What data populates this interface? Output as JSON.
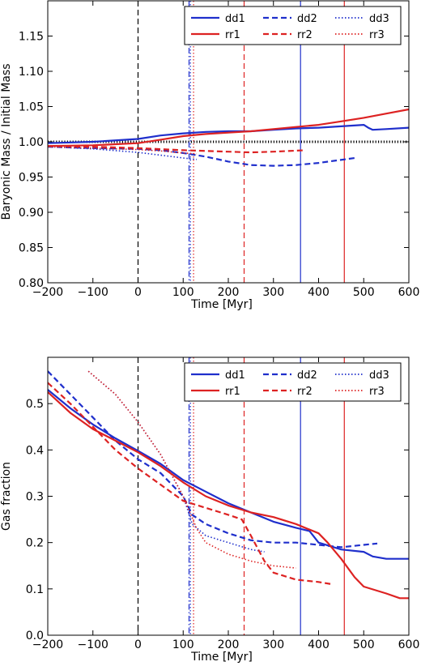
{
  "chart_data": [
    {
      "type": "line",
      "xlabel": "Time [Myr]",
      "ylabel": "Baryonic Mass / Initial Mass",
      "xlim": [
        -200,
        600
      ],
      "ylim": [
        0.8,
        1.2
      ],
      "xticks": [
        -200,
        -100,
        0,
        100,
        200,
        300,
        400,
        500,
        600
      ],
      "xtick_labels": [
        "−200",
        "−100",
        "0",
        "100",
        "200",
        "300",
        "400",
        "500",
        "600"
      ],
      "yticks": [
        0.8,
        0.85,
        0.9,
        0.95,
        1.0,
        1.05,
        1.1,
        1.15
      ],
      "ytick_labels": [
        "0.80",
        "0.85",
        "0.90",
        "0.95",
        "1.00",
        "1.05",
        "1.10",
        "1.15"
      ],
      "hlines": [
        {
          "y": 1.0,
          "style": "dotted",
          "color": "#000000"
        }
      ],
      "legend_position": "top-right",
      "series": [
        {
          "name": "dd1",
          "color": "#1f2fcc",
          "style": "solid",
          "x": [
            -200,
            -100,
            0,
            50,
            100,
            150,
            200,
            250,
            300,
            350,
            400,
            450,
            500,
            510,
            520,
            550,
            600
          ],
          "y": [
            0.998,
            1.0,
            1.004,
            1.009,
            1.012,
            1.014,
            1.015,
            1.015,
            1.017,
            1.019,
            1.02,
            1.022,
            1.024,
            1.02,
            1.017,
            1.018,
            1.02
          ]
        },
        {
          "name": "dd2",
          "color": "#1f2fcc",
          "style": "dashed",
          "x": [
            -200,
            -100,
            0,
            50,
            100,
            150,
            200,
            250,
            300,
            350,
            400,
            480
          ],
          "y": [
            0.993,
            0.991,
            0.99,
            0.988,
            0.984,
            0.979,
            0.972,
            0.967,
            0.966,
            0.967,
            0.97,
            0.977
          ]
        },
        {
          "name": "dd3",
          "color": "#1f2fcc",
          "style": "dotted",
          "x": [
            -200,
            -100,
            0,
            50,
            100,
            130
          ],
          "y": [
            0.993,
            0.99,
            0.985,
            0.981,
            0.977,
            0.975
          ]
        },
        {
          "name": "rr1",
          "color": "#dd2222",
          "style": "solid",
          "x": [
            -200,
            -100,
            0,
            50,
            100,
            150,
            200,
            250,
            300,
            350,
            400,
            450,
            500,
            550,
            600
          ],
          "y": [
            0.994,
            0.995,
            0.998,
            1.003,
            1.008,
            1.011,
            1.013,
            1.015,
            1.018,
            1.021,
            1.024,
            1.029,
            1.034,
            1.04,
            1.046
          ]
        },
        {
          "name": "rr2",
          "color": "#dd2222",
          "style": "dashed",
          "x": [
            -200,
            -100,
            0,
            100,
            200,
            250,
            300,
            370
          ],
          "y": [
            0.994,
            0.993,
            0.991,
            0.988,
            0.986,
            0.985,
            0.986,
            0.988
          ]
        },
        {
          "name": "rr3",
          "color": "#dd2222",
          "style": "dotted",
          "x": [
            -200,
            -100,
            0,
            50,
            100,
            130
          ],
          "y": [
            0.993,
            0.991,
            0.989,
            0.987,
            0.984,
            0.983
          ]
        }
      ],
      "vlines": [
        {
          "x": 0,
          "color": "#000000",
          "style": "dashed"
        },
        {
          "x": 113,
          "color": "#1f2fcc",
          "style": "dashdot"
        },
        {
          "x": 116,
          "color": "#1f2fcc",
          "style": "dotted"
        },
        {
          "x": 123,
          "color": "#dd2222",
          "style": "dotted"
        },
        {
          "x": 235,
          "color": "#dd2222",
          "style": "dashed"
        },
        {
          "x": 360,
          "color": "#1f2fcc",
          "style": "solid"
        },
        {
          "x": 457,
          "color": "#dd2222",
          "style": "solid"
        }
      ]
    },
    {
      "type": "line",
      "xlabel": "Time [Myr]",
      "ylabel": "Gas fraction",
      "xlim": [
        -200,
        600
      ],
      "ylim": [
        0.0,
        0.6
      ],
      "xticks": [
        -200,
        -100,
        0,
        100,
        200,
        300,
        400,
        500,
        600
      ],
      "xtick_labels": [
        "−200",
        "−100",
        "0",
        "100",
        "200",
        "300",
        "400",
        "500",
        "600"
      ],
      "yticks": [
        0.0,
        0.1,
        0.2,
        0.3,
        0.4,
        0.5
      ],
      "ytick_labels": [
        "0.0",
        "0.1",
        "0.2",
        "0.3",
        "0.4",
        "0.5"
      ],
      "legend_position": "top-right",
      "series": [
        {
          "name": "dd1",
          "color": "#1f2fcc",
          "style": "solid",
          "x": [
            -200,
            -150,
            -100,
            -50,
            0,
            50,
            100,
            150,
            200,
            250,
            300,
            350,
            380,
            400,
            450,
            500,
            520,
            550,
            600
          ],
          "y": [
            0.53,
            0.49,
            0.455,
            0.425,
            0.398,
            0.37,
            0.335,
            0.31,
            0.285,
            0.265,
            0.245,
            0.232,
            0.225,
            0.2,
            0.185,
            0.18,
            0.17,
            0.165,
            0.165
          ]
        },
        {
          "name": "dd2",
          "color": "#1f2fcc",
          "style": "dashed",
          "x": [
            -200,
            -150,
            -100,
            -50,
            0,
            50,
            100,
            120,
            150,
            200,
            250,
            300,
            350,
            400,
            450,
            500,
            530
          ],
          "y": [
            0.57,
            0.52,
            0.47,
            0.42,
            0.38,
            0.35,
            0.3,
            0.26,
            0.24,
            0.22,
            0.205,
            0.2,
            0.2,
            0.195,
            0.19,
            0.195,
            0.198
          ]
        },
        {
          "name": "dd3",
          "color": "#1f2fcc",
          "style": "dotted",
          "x": [
            -110,
            -50,
            0,
            50,
            100,
            120,
            150,
            200,
            250,
            280
          ],
          "y": [
            0.57,
            0.52,
            0.46,
            0.39,
            0.3,
            0.24,
            0.215,
            0.2,
            0.185,
            0.18
          ]
        },
        {
          "name": "rr1",
          "color": "#dd2222",
          "style": "solid",
          "x": [
            -200,
            -150,
            -100,
            -50,
            0,
            50,
            100,
            150,
            200,
            250,
            300,
            350,
            400,
            420,
            450,
            480,
            500,
            550,
            580,
            600
          ],
          "y": [
            0.525,
            0.48,
            0.445,
            0.42,
            0.395,
            0.365,
            0.33,
            0.3,
            0.28,
            0.265,
            0.255,
            0.24,
            0.22,
            0.2,
            0.165,
            0.125,
            0.105,
            0.09,
            0.08,
            0.08
          ]
        },
        {
          "name": "rr2",
          "color": "#dd2222",
          "style": "dashed",
          "x": [
            -200,
            -150,
            -100,
            -50,
            0,
            50,
            100,
            150,
            200,
            230,
            250,
            280,
            300,
            350,
            400,
            430
          ],
          "y": [
            0.545,
            0.5,
            0.45,
            0.4,
            0.36,
            0.325,
            0.29,
            0.275,
            0.26,
            0.25,
            0.215,
            0.16,
            0.135,
            0.12,
            0.115,
            0.11
          ]
        },
        {
          "name": "rr3",
          "color": "#dd2222",
          "style": "dotted",
          "x": [
            -110,
            -50,
            0,
            50,
            100,
            130,
            150,
            200,
            250,
            300,
            350
          ],
          "y": [
            0.57,
            0.52,
            0.46,
            0.39,
            0.3,
            0.23,
            0.2,
            0.175,
            0.16,
            0.15,
            0.145
          ]
        }
      ],
      "vlines": [
        {
          "x": 0,
          "color": "#000000",
          "style": "dashed"
        },
        {
          "x": 113,
          "color": "#1f2fcc",
          "style": "dashdot"
        },
        {
          "x": 116,
          "color": "#1f2fcc",
          "style": "dotted"
        },
        {
          "x": 123,
          "color": "#dd2222",
          "style": "dotted"
        },
        {
          "x": 235,
          "color": "#dd2222",
          "style": "dashed"
        },
        {
          "x": 360,
          "color": "#1f2fcc",
          "style": "solid"
        },
        {
          "x": 457,
          "color": "#dd2222",
          "style": "solid"
        }
      ]
    }
  ]
}
